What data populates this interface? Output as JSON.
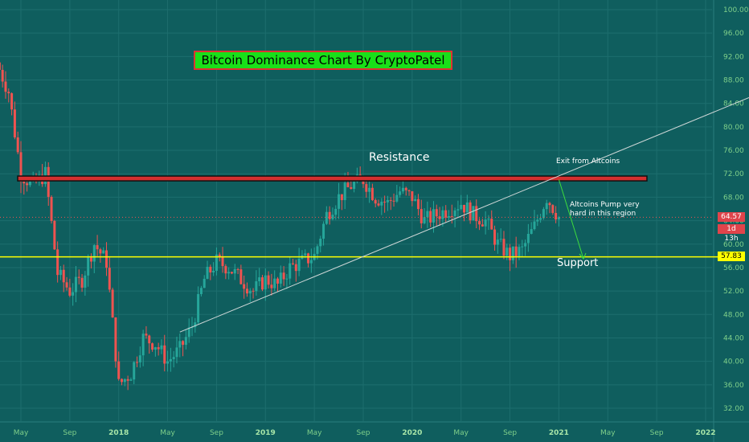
{
  "chart_data": {
    "type": "candlestick",
    "title": "Bitcoin Dominance Chart By CryptoPatel",
    "y_ticks": [
      "32.00",
      "36.00",
      "40.00",
      "44.00",
      "48.00",
      "52.00",
      "56.00",
      "60.00",
      "64.00",
      "68.00",
      "72.00",
      "76.00",
      "80.00",
      "84.00",
      "88.00",
      "92.00",
      "96.00",
      "100.00"
    ],
    "x_ticks": [
      {
        "label": "May",
        "bold": false
      },
      {
        "label": "Sep",
        "bold": false
      },
      {
        "label": "2018",
        "bold": true
      },
      {
        "label": "May",
        "bold": false
      },
      {
        "label": "Sep",
        "bold": false
      },
      {
        "label": "2019",
        "bold": true
      },
      {
        "label": "May",
        "bold": false
      },
      {
        "label": "Sep",
        "bold": false
      },
      {
        "label": "2020",
        "bold": true
      },
      {
        "label": "May",
        "bold": false
      },
      {
        "label": "Sep",
        "bold": false
      },
      {
        "label": "2021",
        "bold": true
      },
      {
        "label": "May",
        "bold": false
      },
      {
        "label": "Sep",
        "bold": false
      },
      {
        "label": "2022",
        "bold": true
      }
    ],
    "ylim": [
      30,
      102
    ],
    "grid": true,
    "series": [
      {
        "date": "2017-03",
        "close": 91
      },
      {
        "date": "2017-04",
        "close": 86
      },
      {
        "date": "2017-05",
        "close": 72
      },
      {
        "date": "2017-06",
        "close": 70
      },
      {
        "date": "2017-07",
        "close": 72
      },
      {
        "date": "2017-08",
        "close": 55
      },
      {
        "date": "2017-09",
        "close": 52
      },
      {
        "date": "2017-10",
        "close": 54
      },
      {
        "date": "2017-11",
        "close": 60
      },
      {
        "date": "2017-12",
        "close": 57
      },
      {
        "date": "2018-01",
        "close": 36
      },
      {
        "date": "2018-02",
        "close": 38
      },
      {
        "date": "2018-03",
        "close": 44
      },
      {
        "date": "2018-04",
        "close": 43
      },
      {
        "date": "2018-05",
        "close": 40
      },
      {
        "date": "2018-06",
        "close": 42
      },
      {
        "date": "2018-07",
        "close": 46
      },
      {
        "date": "2018-08",
        "close": 54
      },
      {
        "date": "2018-09",
        "close": 57
      },
      {
        "date": "2018-10",
        "close": 56
      },
      {
        "date": "2018-11",
        "close": 54
      },
      {
        "date": "2018-12",
        "close": 52
      },
      {
        "date": "2019-01",
        "close": 54
      },
      {
        "date": "2019-02",
        "close": 53
      },
      {
        "date": "2019-03",
        "close": 56
      },
      {
        "date": "2019-04",
        "close": 57
      },
      {
        "date": "2019-05",
        "close": 58
      },
      {
        "date": "2019-06",
        "close": 65
      },
      {
        "date": "2019-07",
        "close": 68
      },
      {
        "date": "2019-08",
        "close": 70
      },
      {
        "date": "2019-09",
        "close": 71
      },
      {
        "date": "2019-10",
        "close": 68
      },
      {
        "date": "2019-11",
        "close": 67
      },
      {
        "date": "2019-12",
        "close": 69
      },
      {
        "date": "2020-01",
        "close": 68
      },
      {
        "date": "2020-02",
        "close": 64
      },
      {
        "date": "2020-03",
        "close": 65
      },
      {
        "date": "2020-04",
        "close": 66
      },
      {
        "date": "2020-05",
        "close": 67
      },
      {
        "date": "2020-06",
        "close": 65
      },
      {
        "date": "2020-07",
        "close": 64
      },
      {
        "date": "2020-08",
        "close": 60
      },
      {
        "date": "2020-09",
        "close": 58
      },
      {
        "date": "2020-10",
        "close": 59
      },
      {
        "date": "2020-11",
        "close": 63
      },
      {
        "date": "2020-12",
        "close": 68
      },
      {
        "date": "2021-01",
        "close": 64.57
      }
    ],
    "annotations": {
      "resistance_label": "Resistance",
      "exit_label": "Exit from Altcoins",
      "pump_label": "Altcoins Pump very hard in this region",
      "support_label": "Support"
    },
    "resistance_level": 71.2,
    "support_level": 57.83,
    "current_price": "64.57",
    "countdown": "1d 13h",
    "support_price": "57.83",
    "colors": {
      "background": "#0f5e5e",
      "up": "#26a69a",
      "down": "#ef5350",
      "resistance_zone": "#d32f2f",
      "support_line": "#ffff00",
      "trendline": "#d0d8d8",
      "arrow": "#3ddc3d",
      "axis_text": "#7fd08a"
    }
  }
}
